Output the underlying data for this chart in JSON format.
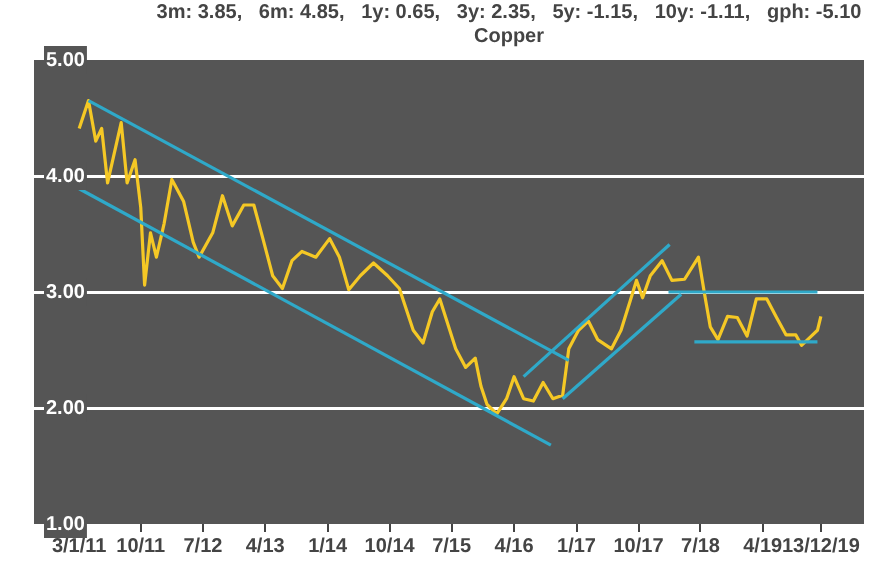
{
  "chart_data": {
    "type": "line",
    "title": "Copper",
    "annotations": [
      "3m: 3.85,   6m: 4.85,   1y: 0.65,   3y: 2.35,   5y: -1.15,   10y: -1.11,   gph: -5.10"
    ],
    "x": [
      "2011-01-03",
      "2011-02-13",
      "2011-03-17",
      "2011-04-12",
      "2011-05-08",
      "2011-07-07",
      "2011-08-02",
      "2011-09-06",
      "2011-10-01",
      "2011-10-18",
      "2011-11-13",
      "2011-12-09",
      "2012-01-12",
      "2012-02-15",
      "2012-04-07",
      "2012-05-19",
      "2012-06-14",
      "2012-08-13",
      "2012-09-25",
      "2012-11-07",
      "2012-12-28",
      "2013-02-10",
      "2013-03-22",
      "2013-05-04",
      "2013-06-16",
      "2013-07-28",
      "2013-09-10",
      "2013-11-10",
      "2014-01-10",
      "2014-02-22",
      "2014-04-04",
      "2014-05-25",
      "2014-07-22",
      "2014-09-22",
      "2014-11-13",
      "2015-01-13",
      "2015-02-25",
      "2015-04-07",
      "2015-05-10",
      "2015-07-19",
      "2015-09-01",
      "2015-10-13",
      "2015-11-07",
      "2015-12-04",
      "2016-01-16",
      "2016-02-28",
      "2016-04-01",
      "2016-05-13",
      "2016-06-25",
      "2016-08-07",
      "2016-09-19",
      "2016-11-01",
      "2016-11-28",
      "2017-01-10",
      "2017-02-22",
      "2017-04-04",
      "2017-06-04",
      "2017-07-16",
      "2017-08-28",
      "2017-09-22",
      "2017-10-19",
      "2017-11-22",
      "2018-01-13",
      "2018-02-25",
      "2018-04-22",
      "2018-06-22",
      "2018-07-19",
      "2018-08-13",
      "2018-09-16",
      "2018-10-28",
      "2018-12-10",
      "2019-01-22",
      "2019-03-04",
      "2019-04-19",
      "2019-06-01",
      "2019-07-13",
      "2019-08-25",
      "2019-09-19",
      "2019-11-01",
      "2019-11-28",
      "2019-12-13"
    ],
    "series": [
      {
        "color": "#f5c825",
        "values": [
          4.41,
          4.65,
          4.3,
          4.41,
          3.94,
          4.46,
          3.94,
          4.14,
          3.73,
          3.06,
          3.51,
          3.3,
          3.59,
          3.97,
          3.78,
          3.43,
          3.3,
          3.51,
          3.83,
          3.57,
          3.75,
          3.75,
          3.46,
          3.14,
          3.03,
          3.27,
          3.35,
          3.3,
          3.46,
          3.3,
          3.02,
          3.14,
          3.25,
          3.14,
          3.03,
          2.67,
          2.56,
          2.83,
          2.94,
          2.51,
          2.35,
          2.43,
          2.19,
          2.03,
          1.95,
          2.08,
          2.27,
          2.08,
          2.06,
          2.22,
          2.08,
          2.11,
          2.51,
          2.67,
          2.75,
          2.59,
          2.51,
          2.67,
          2.94,
          3.1,
          2.95,
          3.14,
          3.27,
          3.1,
          3.11,
          3.3,
          2.98,
          2.7,
          2.59,
          2.79,
          2.78,
          2.62,
          2.94,
          2.94,
          2.78,
          2.63,
          2.63,
          2.54,
          2.62,
          2.67,
          2.79
        ]
      },
      {
        "type": "line",
        "color": "#2fa9c9",
        "x": [
          "2011-02-13",
          "2016-11-28"
        ],
        "values": [
          4.65,
          2.41
        ]
      },
      {
        "type": "line",
        "color": "#2fa9c9",
        "x": [
          "2011-01-03",
          "2016-09-10"
        ],
        "values": [
          3.89,
          1.68
        ]
      },
      {
        "type": "line",
        "color": "#2fa9c9",
        "x": [
          "2016-05-13",
          "2018-02-15"
        ],
        "values": [
          2.27,
          3.41
        ]
      },
      {
        "type": "line",
        "color": "#2fa9c9",
        "x": [
          "2016-11-01",
          "2018-04-07"
        ],
        "values": [
          2.08,
          2.98
        ]
      },
      {
        "type": "line",
        "color": "#2fa9c9",
        "x": [
          "2018-02-10",
          "2019-11-28"
        ],
        "values": [
          3.0,
          3.0
        ]
      },
      {
        "type": "line",
        "color": "#2fa9c9",
        "x": [
          "2018-06-04",
          "2019-11-28"
        ],
        "values": [
          2.57,
          2.57
        ]
      }
    ],
    "xlim": [
      "2010-06-18",
      "2020-06-20"
    ],
    "xticks": [
      {
        "value": "2011-01-03",
        "label": "3/1/11"
      },
      {
        "value": "2011-10-01",
        "label": "10/11"
      },
      {
        "value": "2012-07-01",
        "label": "7/12"
      },
      {
        "value": "2013-04-01",
        "label": "4/13"
      },
      {
        "value": "2014-01-01",
        "label": "1/14"
      },
      {
        "value": "2014-10-01",
        "label": "10/14"
      },
      {
        "value": "2015-07-01",
        "label": "7/15"
      },
      {
        "value": "2016-04-01",
        "label": "4/16"
      },
      {
        "value": "2017-01-01",
        "label": "1/17"
      },
      {
        "value": "2017-10-01",
        "label": "10/17"
      },
      {
        "value": "2018-07-01",
        "label": "7/18"
      },
      {
        "value": "2019-04-01",
        "label": "4/19"
      },
      {
        "value": "2019-12-13",
        "label": "13/12/19"
      }
    ],
    "ylim": [
      1,
      5
    ],
    "yticks": [
      {
        "value": 1,
        "label": "1.00"
      },
      {
        "value": 2,
        "label": "2.00"
      },
      {
        "value": 3,
        "label": "3.00"
      },
      {
        "value": 4,
        "label": "4.00"
      },
      {
        "value": 5,
        "label": "5.00"
      }
    ],
    "grid": "y",
    "legend": false,
    "marker": "none",
    "line_style": "solid"
  }
}
